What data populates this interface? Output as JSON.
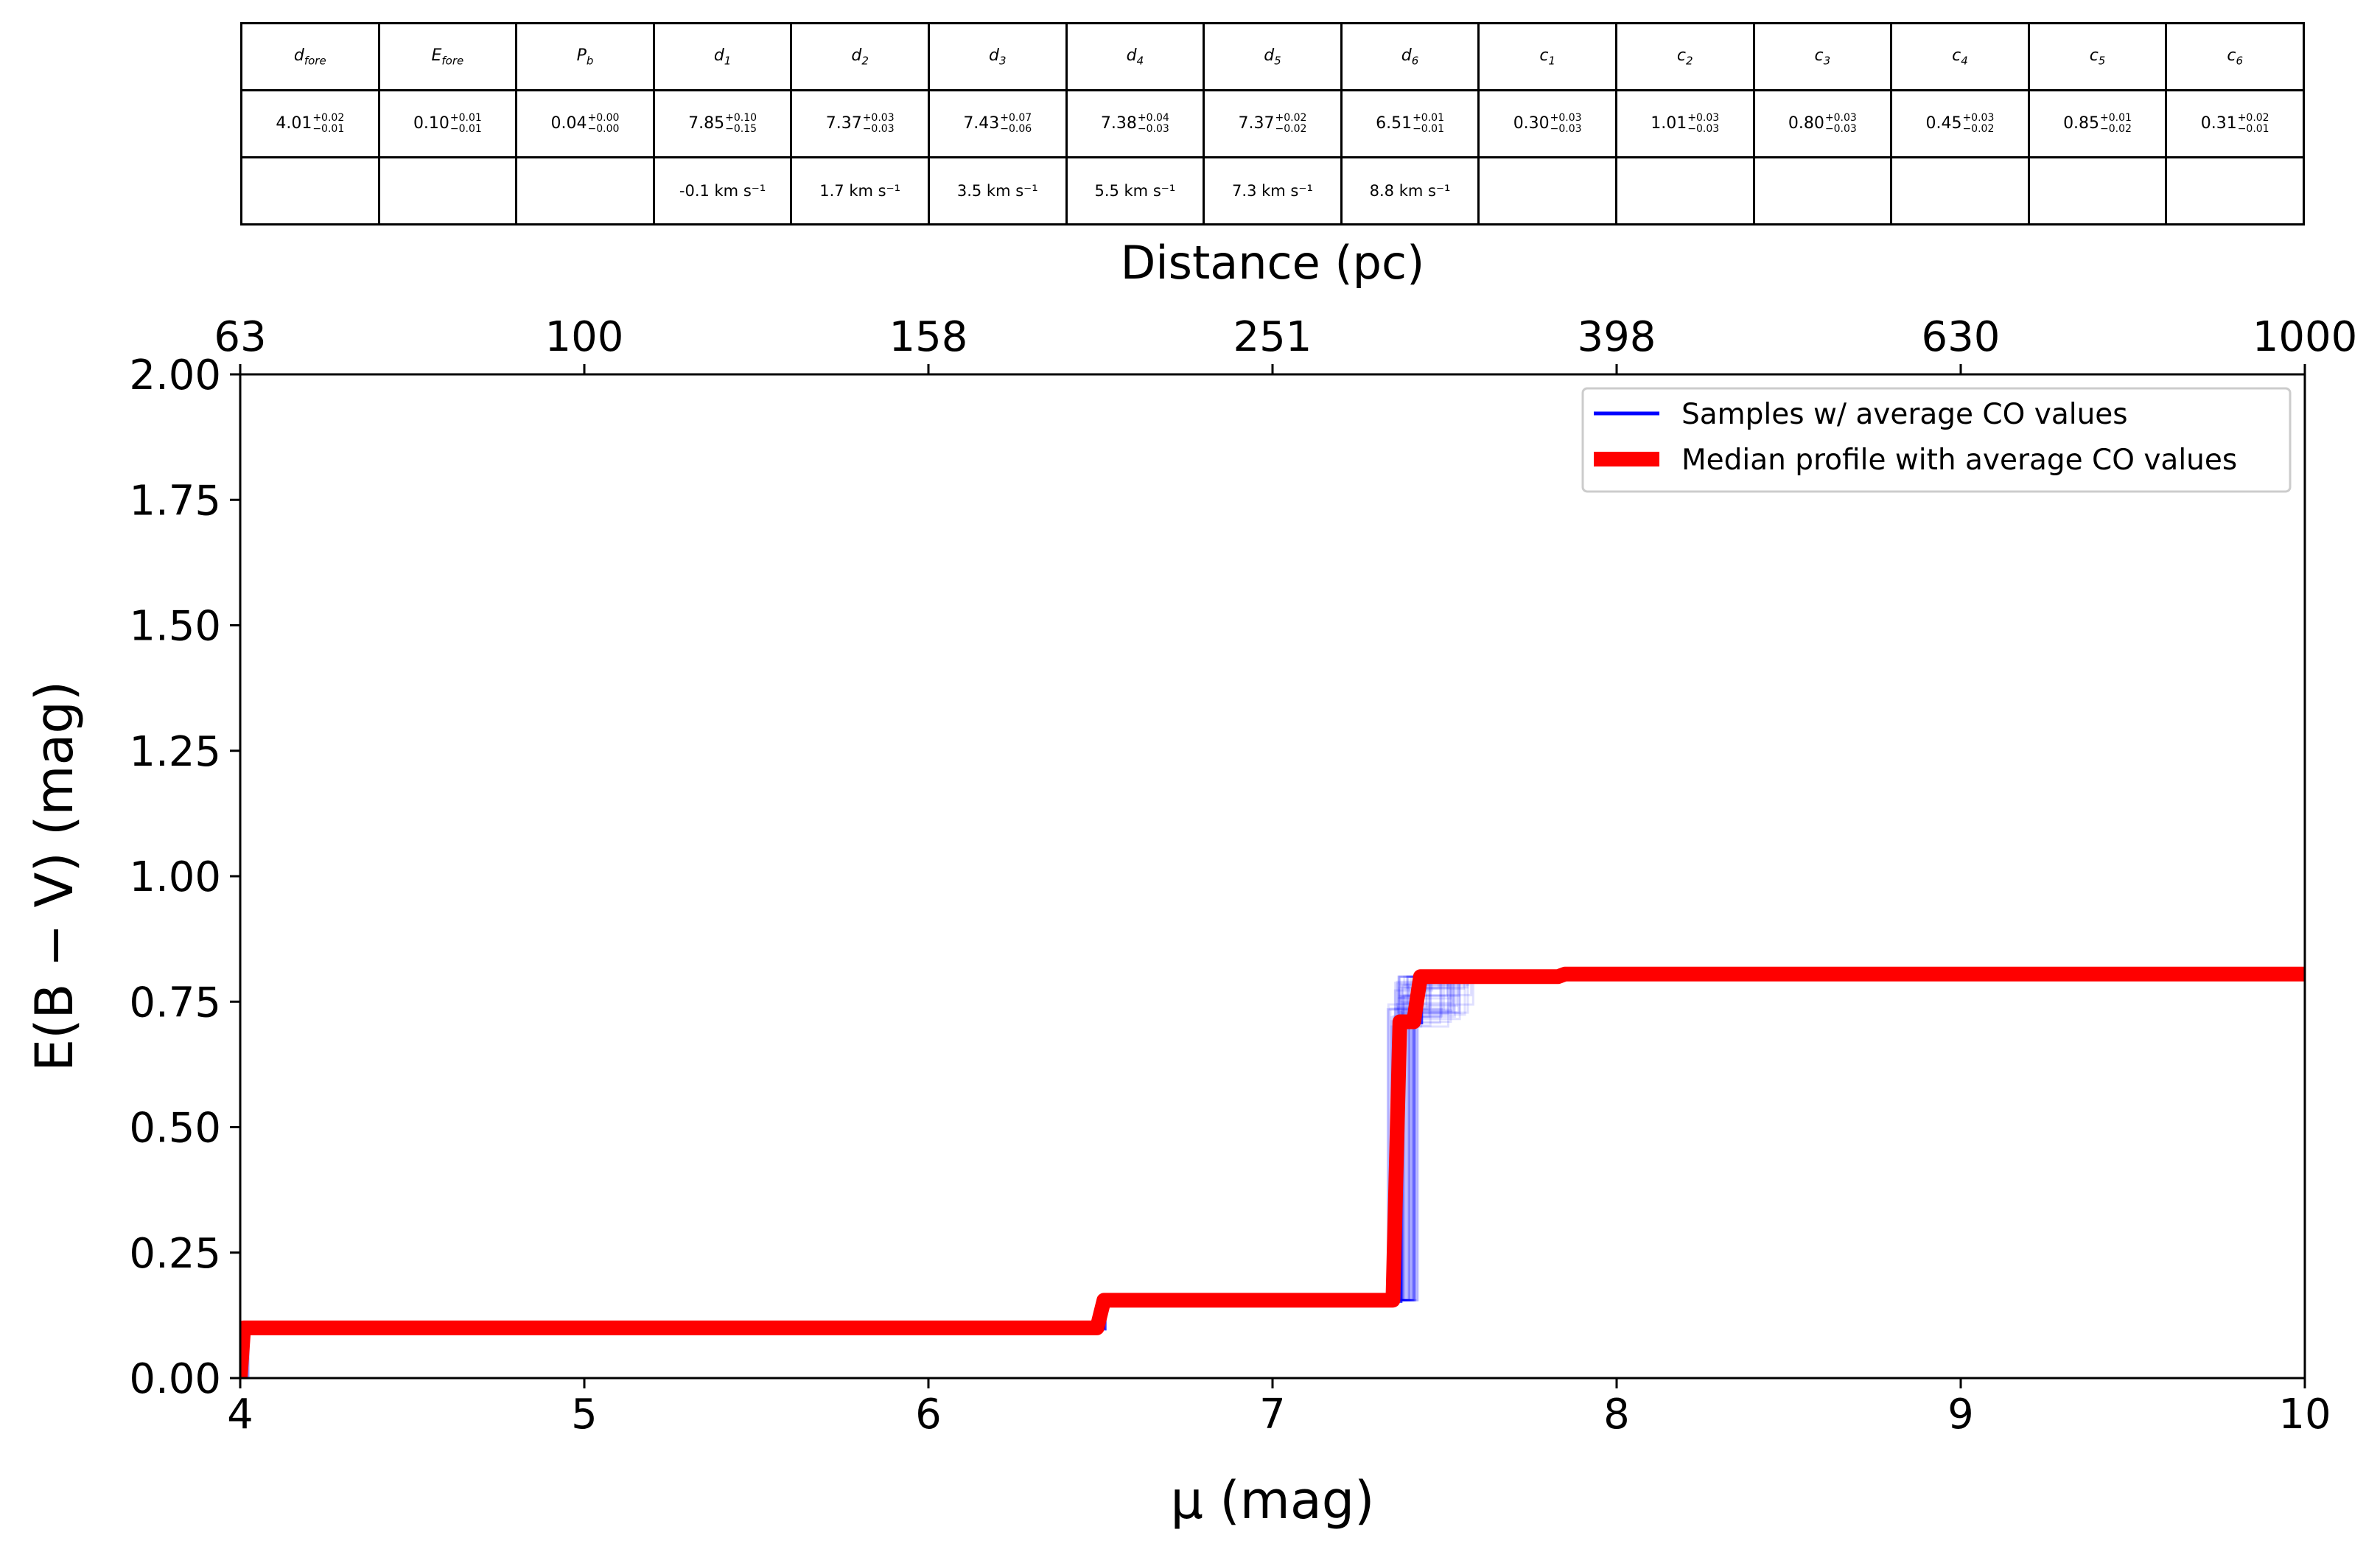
{
  "table": {
    "headers": [
      {
        "sym": "d",
        "sub": "fore"
      },
      {
        "sym": "E",
        "sub": "fore"
      },
      {
        "sym": "P",
        "sub": "b"
      },
      {
        "sym": "d",
        "sub": "1"
      },
      {
        "sym": "d",
        "sub": "2"
      },
      {
        "sym": "d",
        "sub": "3"
      },
      {
        "sym": "d",
        "sub": "4"
      },
      {
        "sym": "d",
        "sub": "5"
      },
      {
        "sym": "d",
        "sub": "6"
      },
      {
        "sym": "c",
        "sub": "1"
      },
      {
        "sym": "c",
        "sub": "2"
      },
      {
        "sym": "c",
        "sub": "3"
      },
      {
        "sym": "c",
        "sub": "4"
      },
      {
        "sym": "c",
        "sub": "5"
      },
      {
        "sym": "c",
        "sub": "6"
      }
    ],
    "values": [
      {
        "v": "4.01",
        "up": "+0.02",
        "lo": "−0.01"
      },
      {
        "v": "0.10",
        "up": "+0.01",
        "lo": "−0.01"
      },
      {
        "v": "0.04",
        "up": "+0.00",
        "lo": "−0.00"
      },
      {
        "v": "7.85",
        "up": "+0.10",
        "lo": "−0.15"
      },
      {
        "v": "7.37",
        "up": "+0.03",
        "lo": "−0.03"
      },
      {
        "v": "7.43",
        "up": "+0.07",
        "lo": "−0.06"
      },
      {
        "v": "7.38",
        "up": "+0.04",
        "lo": "−0.03"
      },
      {
        "v": "7.37",
        "up": "+0.02",
        "lo": "−0.02"
      },
      {
        "v": "6.51",
        "up": "+0.01",
        "lo": "−0.01"
      },
      {
        "v": "0.30",
        "up": "+0.03",
        "lo": "−0.03"
      },
      {
        "v": "1.01",
        "up": "+0.03",
        "lo": "−0.03"
      },
      {
        "v": "0.80",
        "up": "+0.03",
        "lo": "−0.03"
      },
      {
        "v": "0.45",
        "up": "+0.03",
        "lo": "−0.02"
      },
      {
        "v": "0.85",
        "up": "+0.01",
        "lo": "−0.02"
      },
      {
        "v": "0.31",
        "up": "+0.02",
        "lo": "−0.01"
      }
    ],
    "velocities": [
      "",
      "",
      "",
      "-0.1 km s⁻¹",
      "1.7 km s⁻¹",
      "3.5 km s⁻¹",
      "5.5 km s⁻¹",
      "7.3 km s⁻¹",
      "8.8 km s⁻¹",
      "",
      "",
      "",
      "",
      "",
      ""
    ]
  },
  "chart_data": {
    "type": "line",
    "xlabel": "μ (mag)",
    "ylabel": "E(B − V) (mag)",
    "top_xlabel": "Distance (pc)",
    "xlim": [
      4,
      10
    ],
    "ylim": [
      0,
      2
    ],
    "xticks": [
      4,
      5,
      6,
      7,
      8,
      9,
      10
    ],
    "yticks": [
      "0.00",
      "0.25",
      "0.50",
      "0.75",
      "1.00",
      "1.25",
      "1.50",
      "1.75",
      "2.00"
    ],
    "top_ticks": [
      {
        "mu": 4,
        "label": "63"
      },
      {
        "mu": 5,
        "label": "100"
      },
      {
        "mu": 6,
        "label": "158"
      },
      {
        "mu": 7,
        "label": "251"
      },
      {
        "mu": 8,
        "label": "398"
      },
      {
        "mu": 9,
        "label": "630"
      },
      {
        "mu": 10,
        "label": "1000"
      }
    ],
    "legend_position": "upper-right",
    "series": [
      {
        "name": "Samples  w/ average CO values",
        "color": "#0000ff",
        "kind": "samples",
        "base_profile": [
          [
            4.01,
            0
          ],
          [
            4.01,
            0.1
          ],
          [
            6.51,
            0.1
          ],
          [
            6.51,
            0.155
          ],
          [
            7.37,
            0.155
          ],
          [
            7.37,
            0.71
          ],
          [
            7.43,
            0.71
          ],
          [
            7.43,
            0.8
          ],
          [
            10,
            0.8
          ]
        ]
      },
      {
        "name": "Median profile with average CO values",
        "color": "#ff0000",
        "kind": "median",
        "points": [
          [
            4.0,
            0
          ],
          [
            4.01,
            0.1
          ],
          [
            6.49,
            0.1
          ],
          [
            6.51,
            0.155
          ],
          [
            7.35,
            0.155
          ],
          [
            7.37,
            0.71
          ],
          [
            7.41,
            0.71
          ],
          [
            7.43,
            0.8
          ],
          [
            7.83,
            0.8
          ],
          [
            7.85,
            0.805
          ],
          [
            10,
            0.805
          ]
        ]
      }
    ]
  }
}
